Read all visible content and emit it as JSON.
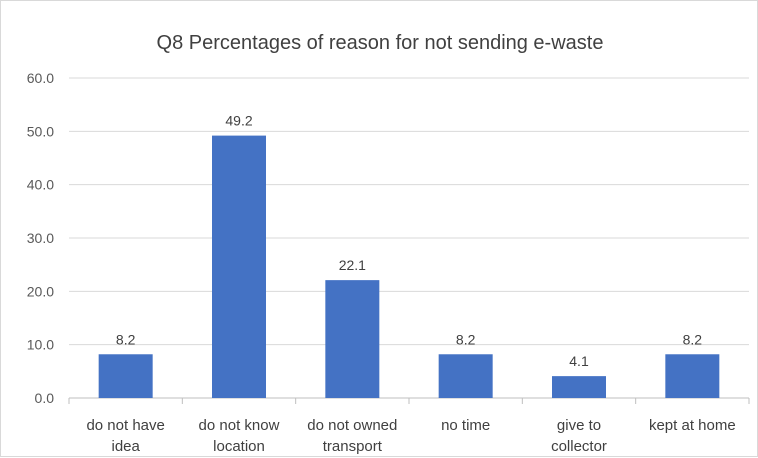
{
  "chart_data": {
    "type": "bar",
    "title": "Q8 Percentages of reason for not sending e-waste",
    "categories": [
      [
        "do not have",
        "idea"
      ],
      [
        "do not know",
        "location"
      ],
      [
        "do not owned",
        "transport"
      ],
      [
        "no time"
      ],
      [
        "give to",
        "collector"
      ],
      [
        "kept at home"
      ]
    ],
    "values": [
      8.2,
      49.2,
      22.1,
      8.2,
      4.1,
      8.2
    ],
    "data_labels": [
      "8.2",
      "49.2",
      "22.1",
      "8.2",
      "4.1",
      "8.2"
    ],
    "ylim": [
      0,
      60
    ],
    "yticks": [
      "0.0",
      "10.0",
      "20.0",
      "30.0",
      "40.0",
      "50.0",
      "60.0"
    ],
    "grid": true,
    "legend": "none",
    "bar_color": "#4472C4",
    "gridline_color": "#d9d9d9"
  }
}
